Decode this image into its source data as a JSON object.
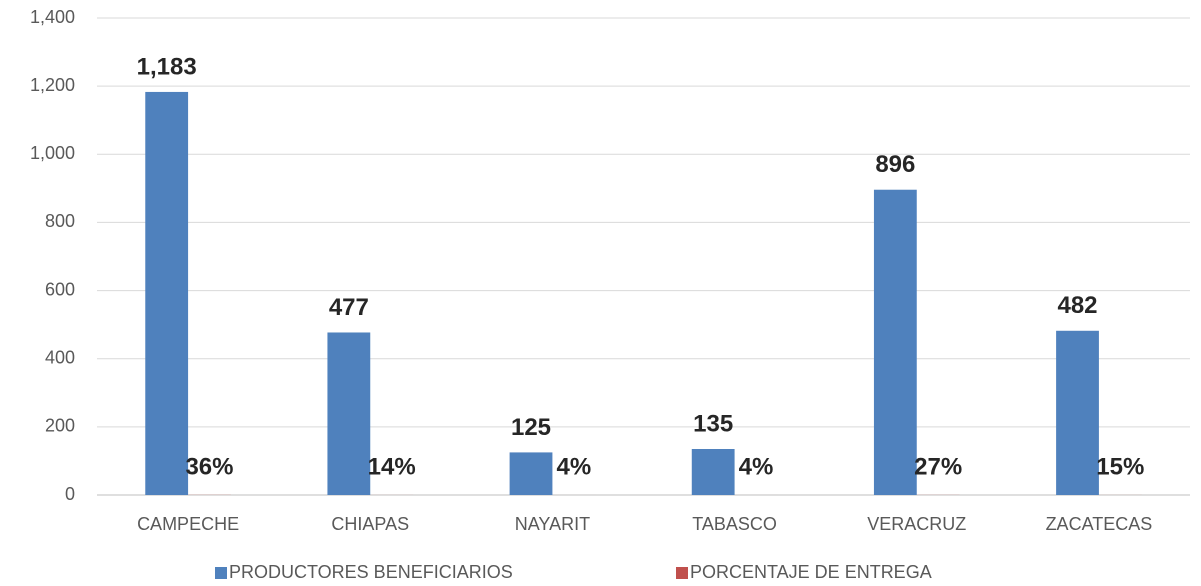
{
  "chart_data": {
    "type": "bar",
    "categories": [
      "CAMPECHE",
      "CHIAPAS",
      "NAYARIT",
      "TABASCO",
      "VERACRUZ",
      "ZACATECAS"
    ],
    "series": [
      {
        "name": "PRODUCTORES BENEFICIARIOS",
        "color": "#4f81bd",
        "values": [
          1183,
          477,
          125,
          135,
          896,
          482
        ],
        "value_labels": [
          "1,183",
          "477",
          "125",
          "135",
          "896",
          "482"
        ]
      },
      {
        "name": "PORCENTAJE DE ENTREGA",
        "color": "#c0504d",
        "values": [
          0.36,
          0.14,
          0.04,
          0.04,
          0.27,
          0.15
        ],
        "value_labels": [
          "36%",
          "14%",
          "4%",
          "4%",
          "27%",
          "15%"
        ]
      }
    ],
    "ylim": [
      0,
      1400
    ],
    "yticks": [
      0,
      200,
      400,
      600,
      800,
      {
        "value": 1000,
        "label": "1,000"
      },
      {
        "value": 1200,
        "label": "1,200"
      },
      {
        "value": 1400,
        "label": "1,400"
      }
    ],
    "grid": true,
    "legend": "bottom"
  }
}
